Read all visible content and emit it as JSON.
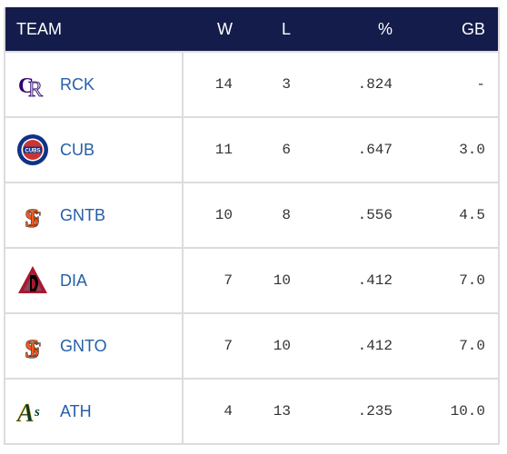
{
  "header": {
    "team": "TEAM",
    "w": "W",
    "l": "L",
    "pct": "%",
    "gb": "GB"
  },
  "rows": [
    {
      "team": "RCK",
      "logo": "rockies-logo-icon",
      "w": "14",
      "l": "3",
      "pct": ".824",
      "gb": "-"
    },
    {
      "team": "CUB",
      "logo": "cubs-logo-icon",
      "w": "11",
      "l": "6",
      "pct": ".647",
      "gb": "3.0"
    },
    {
      "team": "GNTB",
      "logo": "giants-logo-icon",
      "w": "10",
      "l": "8",
      "pct": ".556",
      "gb": "4.5"
    },
    {
      "team": "DIA",
      "logo": "diamondbacks-logo-icon",
      "w": "7",
      "l": "10",
      "pct": ".412",
      "gb": "7.0"
    },
    {
      "team": "GNTO",
      "logo": "giants-logo-icon",
      "w": "7",
      "l": "10",
      "pct": ".412",
      "gb": "7.0"
    },
    {
      "team": "ATH",
      "logo": "athletics-logo-icon",
      "w": "4",
      "l": "13",
      "pct": ".235",
      "gb": "10.0"
    }
  ],
  "colors": {
    "header_bg": "#131c4a",
    "team_link": "#255ea8",
    "border": "#dcdcdc",
    "cubs_blue": "#0e3386",
    "cubs_red": "#cc3433",
    "giants_orange": "#fd5a1e",
    "dbacks_red": "#a71930",
    "rockies_purple": "#33006f",
    "athletics_green": "#003831"
  }
}
